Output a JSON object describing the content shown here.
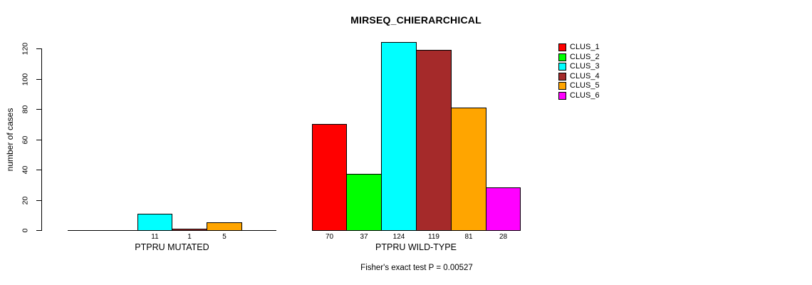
{
  "chart_data": {
    "type": "bar",
    "title": "MIRSEQ_CHIERARCHICAL",
    "ylabel": "number of cases",
    "footer": "Fisher's exact test P = 0.00527",
    "ylim": [
      0,
      120
    ],
    "yticks": [
      0,
      20,
      40,
      60,
      80,
      100,
      120
    ],
    "grid": false,
    "legend_position": "right",
    "series": [
      {
        "name": "CLUS_1",
        "color": "#FF0000"
      },
      {
        "name": "CLUS_2",
        "color": "#00FF00"
      },
      {
        "name": "CLUS_3",
        "color": "#00FFFF"
      },
      {
        "name": "CLUS_4",
        "color": "#A52A2A"
      },
      {
        "name": "CLUS_5",
        "color": "#FFA500"
      },
      {
        "name": "CLUS_6",
        "color": "#FF00FF"
      }
    ],
    "groups": [
      {
        "label": "PTPRU MUTATED",
        "values": [
          0,
          0,
          11,
          1,
          5,
          0
        ]
      },
      {
        "label": "PTPRU WILD-TYPE",
        "values": [
          70,
          37,
          124,
          119,
          81,
          28
        ]
      }
    ],
    "bar_border_color": "#000000",
    "axis_color": "#000000"
  }
}
